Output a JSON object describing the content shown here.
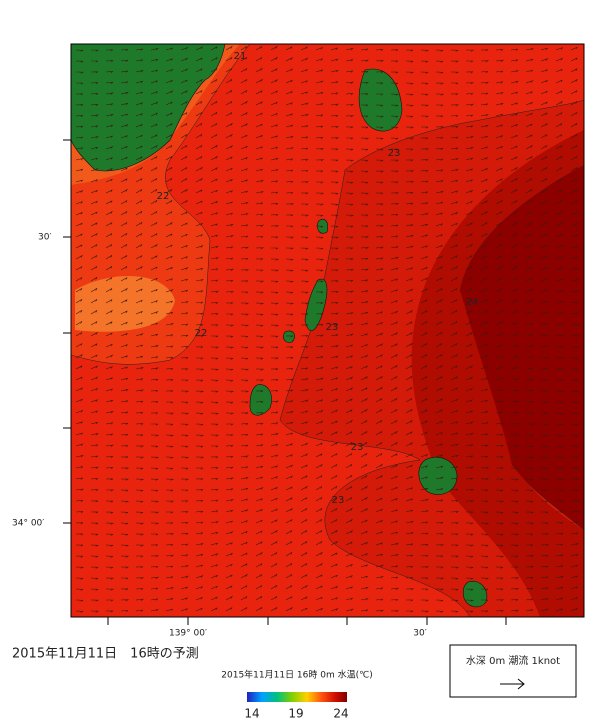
{
  "map": {
    "contour_labels": [
      "21",
      "22",
      "22",
      "23",
      "23",
      "23",
      "23",
      "24"
    ],
    "lat_labels": [
      "30′",
      "34° 00′"
    ],
    "lon_labels": [
      "139° 00′",
      "30′"
    ]
  },
  "caption": "2015年11月11日　16時の予測",
  "colorbar": {
    "title": "2015年11月11日 16時 0m 水温(℃)",
    "ticks": [
      14,
      19,
      24
    ]
  },
  "legend": {
    "text": "水深 0m 潮流 1knot"
  }
}
